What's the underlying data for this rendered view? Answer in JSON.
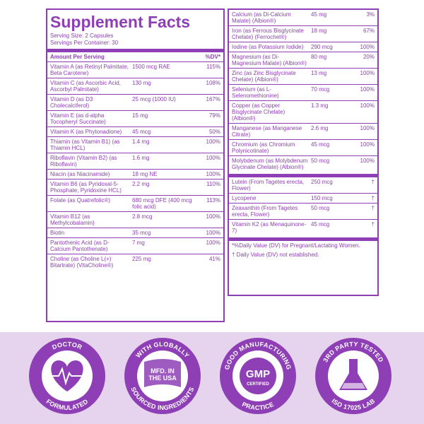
{
  "left_panel": {
    "title": "Supplement Facts",
    "serving_size": "Serving Size: 2 Capsules",
    "servings_per_container": "Servings Per Container: 30",
    "header": {
      "amount": "Amount Per Serving",
      "dv": "%DV*"
    },
    "rows": [
      {
        "name": "Vitamin A (as Retinyl Palmitate, Beta Carotene)",
        "amount": "1500 mcg RAE",
        "dv": "115%"
      },
      {
        "name": "Vitamin C (as Ascorbic Acid, Ascorbyl Palmitate)",
        "amount": "130 mg",
        "dv": "108%"
      },
      {
        "name": "Vitamin D (as D3 Cholecalciferol)",
        "amount": "25 mcg  (1000 IU)",
        "dv": "167%"
      },
      {
        "name": "Vitamin E (as d-alpha Tocopheryl Succinate)",
        "amount": "15 mg",
        "dv": "79%"
      },
      {
        "name": "Vitamin K (as Phytonadione)",
        "amount": "45 mcg",
        "dv": "50%"
      },
      {
        "name": "Thiamin (as Vitamin B1) (as Thiamin HCL)",
        "amount": "1.4 mg",
        "dv": "100%"
      },
      {
        "name": "Riboflavin (Vitamin B2) (as Riboflavin)",
        "amount": "1.6 mg",
        "dv": "100%"
      },
      {
        "name": "Niacin (as Niacinamide)",
        "amount": "18 mg NE",
        "dv": "100%"
      },
      {
        "name": "Vitamin B6 (as Pyridoxal-5-Phosphate, Pyridoxine HCL)",
        "amount": "2.2 mg",
        "dv": "110%"
      },
      {
        "name": "Folate (as Quatrefolic®)",
        "amount": "680 mcg DFE (400 mcg folic acid)",
        "dv": "113%"
      },
      {
        "name": "Vitamin B12 (as Methylcobalamin)",
        "amount": "2.8 mcg",
        "dv": "100%"
      },
      {
        "name": "Biotin",
        "amount": "35 mcg",
        "dv": "100%"
      },
      {
        "name": "Pantothenic Acid (as D-Calcium Pantothenate)",
        "amount": "7 mg",
        "dv": "100%"
      },
      {
        "name": "Choline (as Choline L(+) Bitartrate) (VitaCholine®)",
        "amount": "225 mg",
        "dv": "41%"
      }
    ]
  },
  "right_panel": {
    "rows": [
      {
        "name": "Calcium (as Di-Calcium Malate) (Albion®)",
        "amount": "45 mg",
        "dv": "3%"
      },
      {
        "name": "Iron (as Ferrous Bisglycinate Chelate) (Ferrochel®)",
        "amount": "18 mg",
        "dv": "67%"
      },
      {
        "name": "Iodine (as Potassium Iodide)",
        "amount": "290 mcg",
        "dv": "100%"
      },
      {
        "name": "Magnesium (as Di-Magnesium Malate) (Albion®)",
        "amount": "80 mg",
        "dv": "20%"
      },
      {
        "name": "Zinc (as Zinc Bisglycinate Chelate) (Albion®)",
        "amount": "13 mg",
        "dv": "100%"
      },
      {
        "name": "Selenium (as L-Selenomethionine)",
        "amount": "70 mcg",
        "dv": "100%"
      },
      {
        "name": "Copper (as Copper Bisglycinate Chelate) (Albion®)",
        "amount": "1.3 mg",
        "dv": "100%"
      },
      {
        "name": "Manganese (as Manganese Citrate)",
        "amount": "2.6 mg",
        "dv": "100%"
      },
      {
        "name": "Chromium (as Chromium Polynicotinate)",
        "amount": "45 mcg",
        "dv": "100%"
      },
      {
        "name": "Molybdenum (as Molybdenum Glycinate Chelate) (Albion®)",
        "amount": "50 mcg",
        "dv": "100%"
      }
    ],
    "other_rows": [
      {
        "name": "Lutein (From Tagetes erecta, Flower)",
        "amount": "250 mcg",
        "dv": "†"
      },
      {
        "name": "Lycopene",
        "amount": "150 mcg",
        "dv": "†"
      },
      {
        "name": "Zeaxanthin (From Tagetes erecta, Flower)",
        "amount": "50 mcg",
        "dv": "†"
      },
      {
        "name": "Vitamin K2 (as Menaquinone-7)",
        "amount": "45 mcg",
        "dv": "†"
      }
    ],
    "footnotes": [
      "*%Daily Value (DV) for Pregnant/Lactating Women.",
      "† Daily Value (DV) not established."
    ]
  },
  "badges": [
    {
      "top_text": "DOCTOR",
      "bottom_text": "FORMULATED"
    },
    {
      "top_text": "WITH GLOBALLY",
      "bottom_text": "SOURCED INGREDIENTS",
      "center_text": "MFD. IN THE USA"
    },
    {
      "top_text": "GOOD MANUFACTURING",
      "bottom_text": "PRACTICE",
      "center_text": "GMP",
      "center_subtext": "CERTIFIED"
    },
    {
      "top_text": "3RD PARTY TESTED",
      "bottom_text": "ISO 17025 LAB"
    }
  ]
}
